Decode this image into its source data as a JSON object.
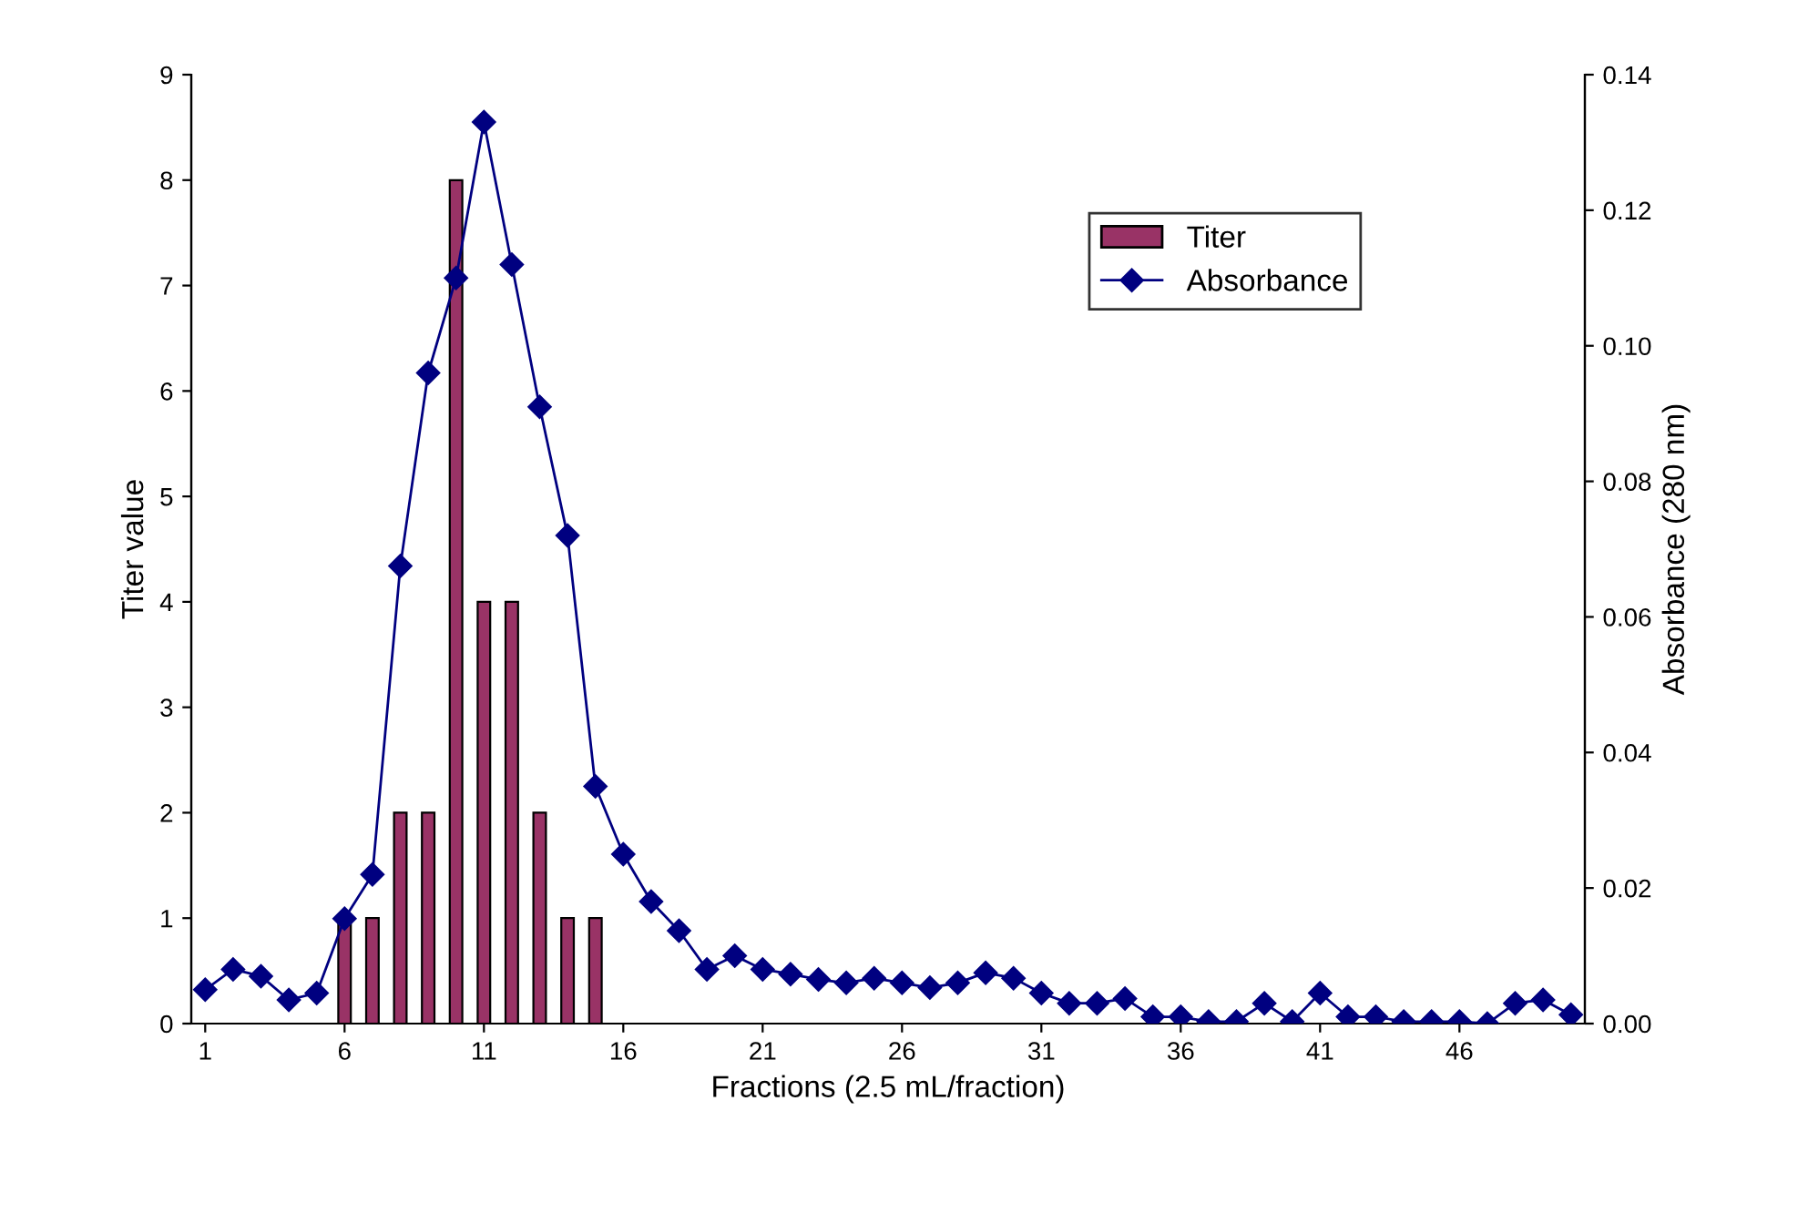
{
  "chart_data": {
    "type": "bar",
    "xlabel": "Fractions (2.5 mL/fraction)",
    "ylabel": "Titer value",
    "y2label": "Absorbance (280 nm)",
    "categories": [
      "1",
      null,
      null,
      null,
      null,
      "6",
      null,
      null,
      null,
      null,
      "11",
      null,
      null,
      null,
      null,
      "16",
      null,
      null,
      null,
      null,
      "21",
      null,
      null,
      null,
      null,
      "26",
      null,
      null,
      null,
      null,
      "31",
      null,
      null,
      null,
      null,
      "36",
      null,
      null,
      null,
      null,
      "41",
      null,
      null,
      null,
      null,
      "46",
      null,
      null,
      null,
      null
    ],
    "series": [
      {
        "name": "Titer",
        "color": "#993366",
        "values": [
          null,
          null,
          null,
          null,
          null,
          1,
          1,
          2,
          2,
          8,
          4,
          4,
          2,
          1,
          1,
          null,
          null,
          null,
          null,
          null,
          null,
          null,
          null,
          null,
          null,
          null,
          null,
          null,
          null,
          null,
          null,
          null,
          null,
          null,
          null,
          null,
          null,
          null,
          null,
          null,
          null,
          null,
          null,
          null,
          null,
          null,
          null,
          null,
          null,
          null
        ]
      },
      {
        "name": "Absorbance",
        "type": "line",
        "axis": "y2",
        "color": "#000080",
        "marker": "diamond",
        "values": [
          0.005,
          0.008,
          0.007,
          0.0035,
          0.0045,
          0.0155,
          0.022,
          0.0675,
          0.096,
          0.11,
          0.133,
          0.112,
          0.091,
          0.072,
          0.035,
          0.025,
          0.018,
          0.0137,
          0.008,
          0.01,
          0.008,
          0.0073,
          0.0065,
          0.006,
          0.0067,
          0.006,
          0.0053,
          0.006,
          0.0075,
          0.0067,
          0.0045,
          0.003,
          0.003,
          0.0037,
          0.001,
          0.001,
          0.0003,
          0.0003,
          0.003,
          0.0003,
          0.0045,
          0.001,
          0.001,
          0.0003,
          0.0003,
          0.0003,
          0.0,
          0.003,
          0.0035,
          0.0013
        ]
      }
    ],
    "ylim": [
      0,
      9
    ],
    "yticks": [
      0,
      1,
      2,
      3,
      4,
      5,
      6,
      7,
      8,
      9
    ],
    "y2lim": [
      0,
      0.14
    ],
    "y2ticks": [
      {
        "value": 0,
        "label": "0.00"
      },
      {
        "value": 0.02,
        "label": "0.02"
      },
      {
        "value": 0.04,
        "label": "0.04"
      },
      {
        "value": 0.06,
        "label": "0.06"
      },
      {
        "value": 0.08,
        "label": "0.08"
      },
      {
        "value": 0.1,
        "label": "0.10"
      },
      {
        "value": 0.12,
        "label": "0.12"
      },
      {
        "value": 0.14,
        "label": "0.14"
      }
    ],
    "legend": "top right",
    "grid": false
  }
}
